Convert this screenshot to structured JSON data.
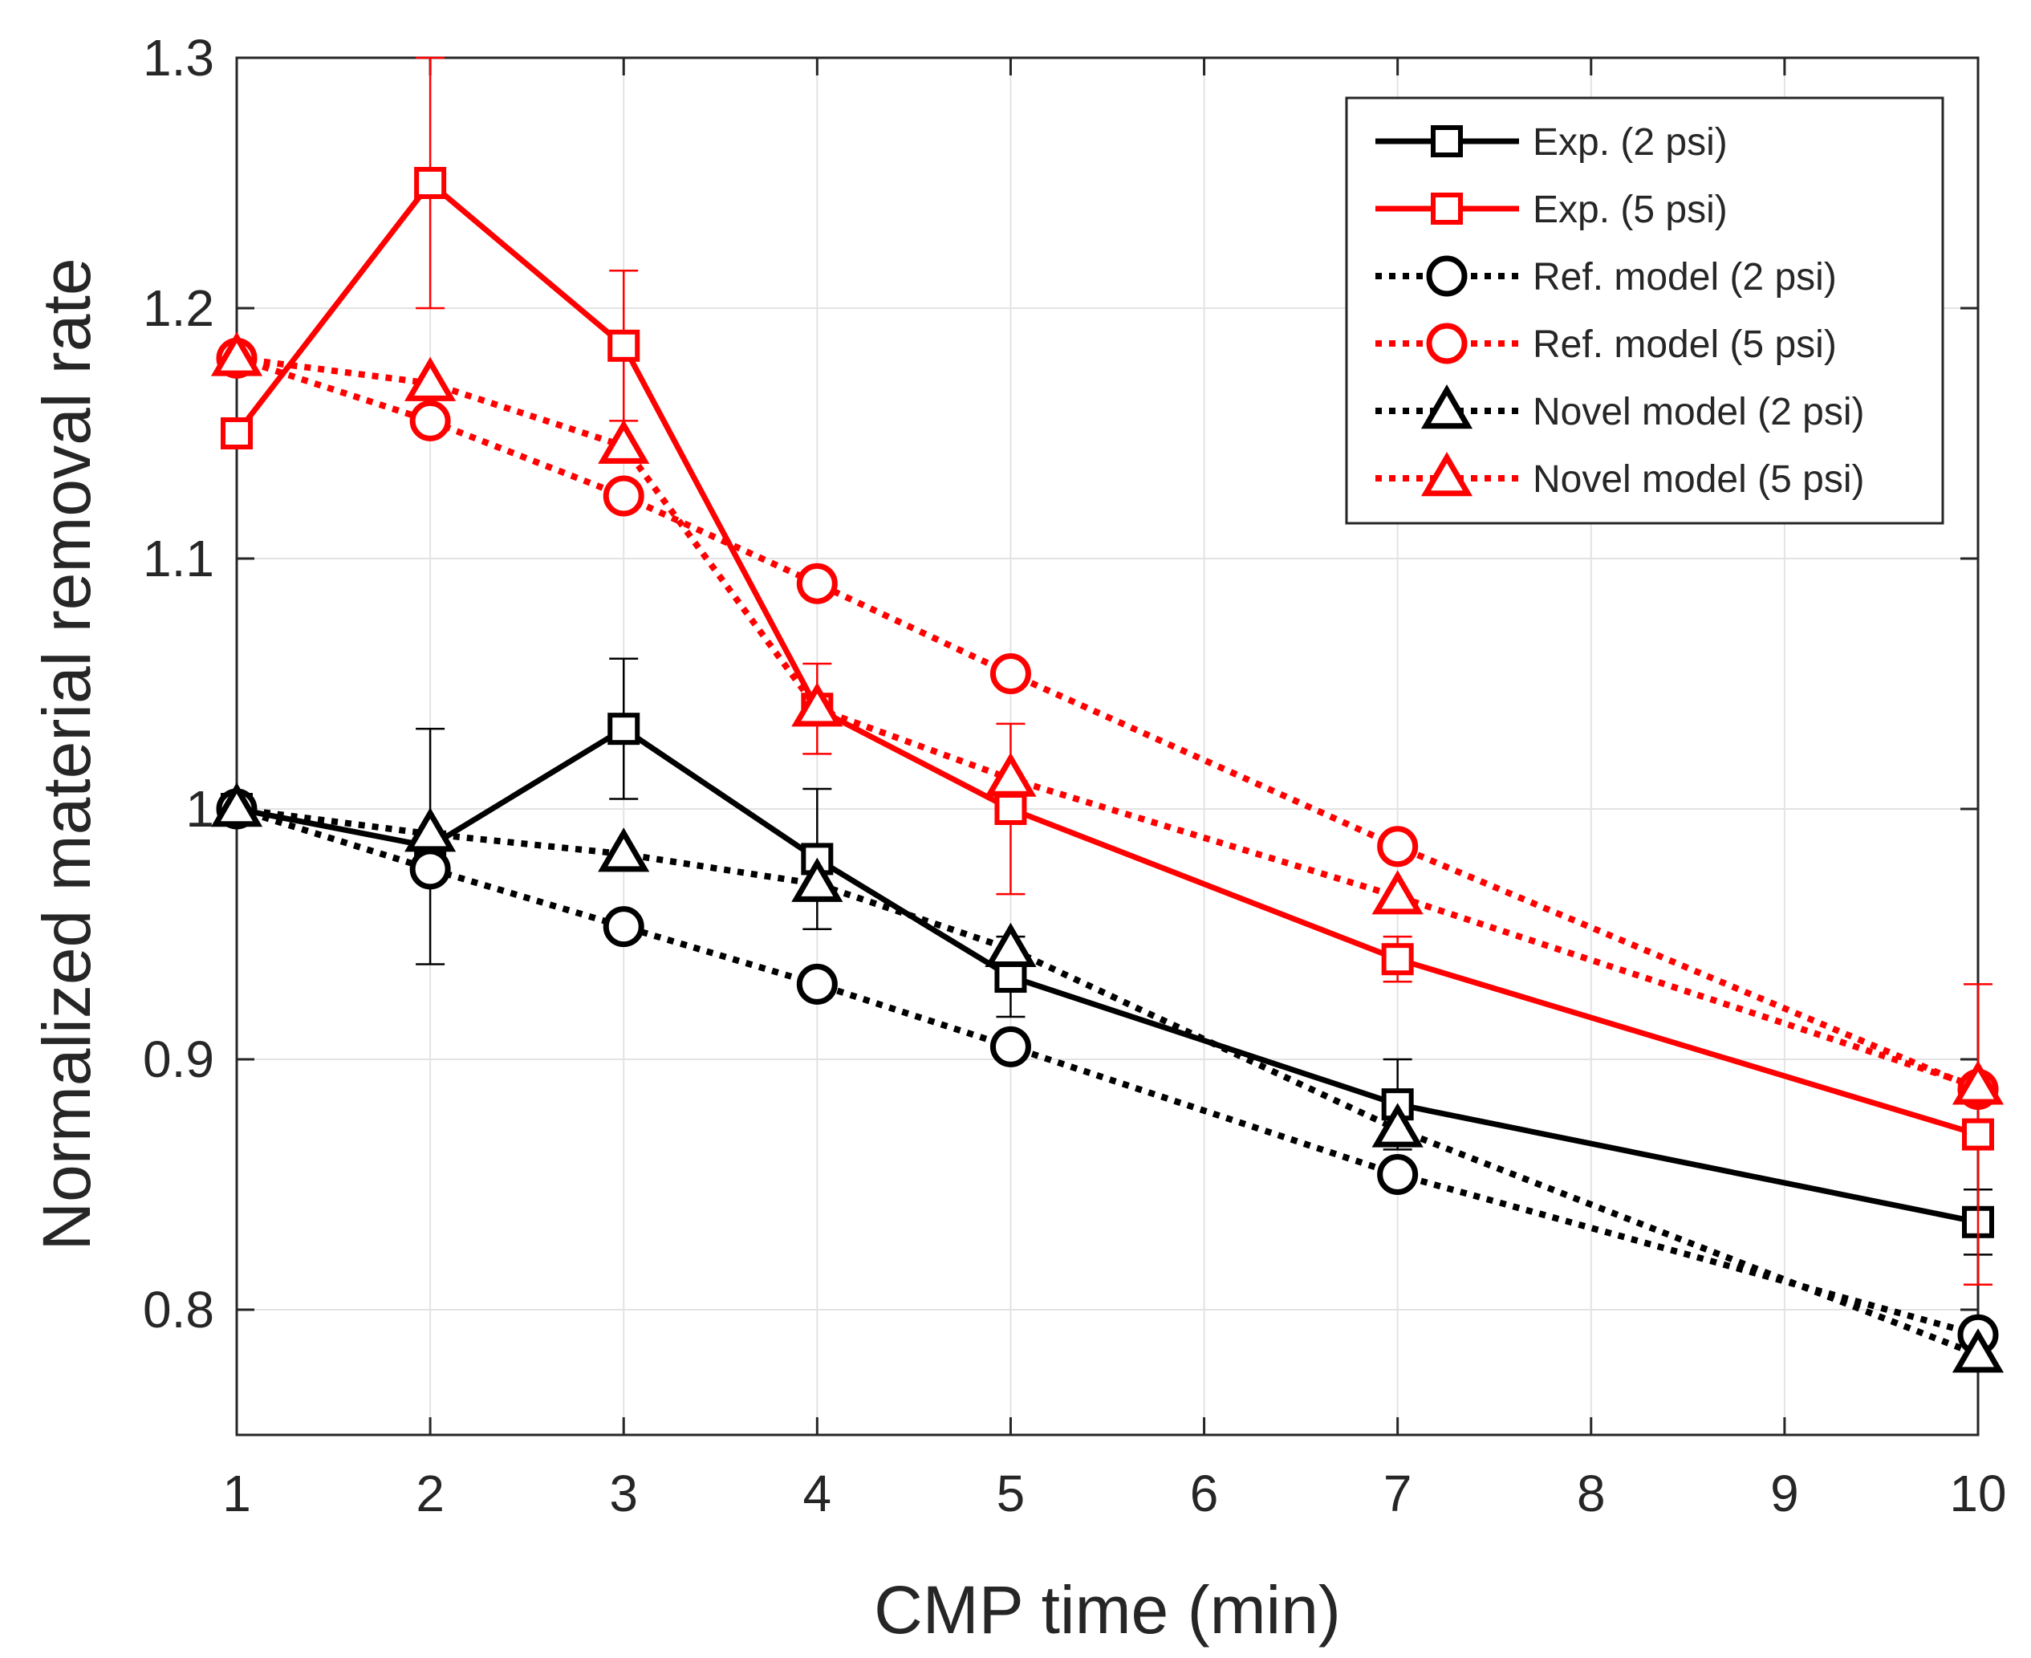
{
  "chart_data": {
    "type": "line",
    "title": "",
    "xlabel": "CMP time (min)",
    "ylabel": "Normalized material removal rate",
    "xlim": [
      1,
      10
    ],
    "ylim": [
      0.75,
      1.3
    ],
    "xticks": [
      1,
      2,
      3,
      4,
      5,
      6,
      7,
      8,
      9,
      10
    ],
    "yticks": [
      0.8,
      0.9,
      1.0,
      1.1,
      1.2,
      1.3
    ],
    "ytick_labels": [
      "0.8",
      "0.9",
      "1",
      "1.1",
      "1.2",
      "1.3"
    ],
    "grid": true,
    "legend_position": "top-right",
    "x": [
      1,
      2,
      3,
      4,
      5,
      7,
      10
    ],
    "series": [
      {
        "name": "Exp. (2 psi)",
        "color": "#000000",
        "line": "solid",
        "marker": "square",
        "values": [
          1.0,
          0.985,
          1.032,
          0.98,
          0.933,
          0.882,
          0.835
        ],
        "errors": [
          0.0,
          0.047,
          0.028,
          0.028,
          0.016,
          0.018,
          0.013
        ]
      },
      {
        "name": "Exp. (5 psi)",
        "color": "#ff0000",
        "line": "solid",
        "marker": "square",
        "values": [
          1.15,
          1.25,
          1.185,
          1.04,
          1.0,
          0.94,
          0.87
        ],
        "errors": [
          0.0,
          0.05,
          0.03,
          0.018,
          0.034,
          0.009,
          0.06
        ]
      },
      {
        "name": "Ref. model (2 psi)",
        "color": "#000000",
        "line": "dotted",
        "marker": "circle",
        "values": [
          1.0,
          0.976,
          0.953,
          0.93,
          0.905,
          0.854,
          0.79
        ]
      },
      {
        "name": "Ref. model (5 psi)",
        "color": "#ff0000",
        "line": "dotted",
        "marker": "circle",
        "values": [
          1.18,
          1.155,
          1.125,
          1.09,
          1.054,
          0.985,
          0.888
        ]
      },
      {
        "name": "Novel model (2 psi)",
        "color": "#000000",
        "line": "dotted",
        "marker": "triangle",
        "values": [
          1.0,
          0.99,
          0.982,
          0.97,
          0.944,
          0.872,
          0.782
        ]
      },
      {
        "name": "Novel model (5 psi)",
        "color": "#ff0000",
        "line": "dotted",
        "marker": "triangle",
        "values": [
          1.18,
          1.17,
          1.145,
          1.04,
          1.012,
          0.965,
          0.889
        ]
      }
    ]
  }
}
